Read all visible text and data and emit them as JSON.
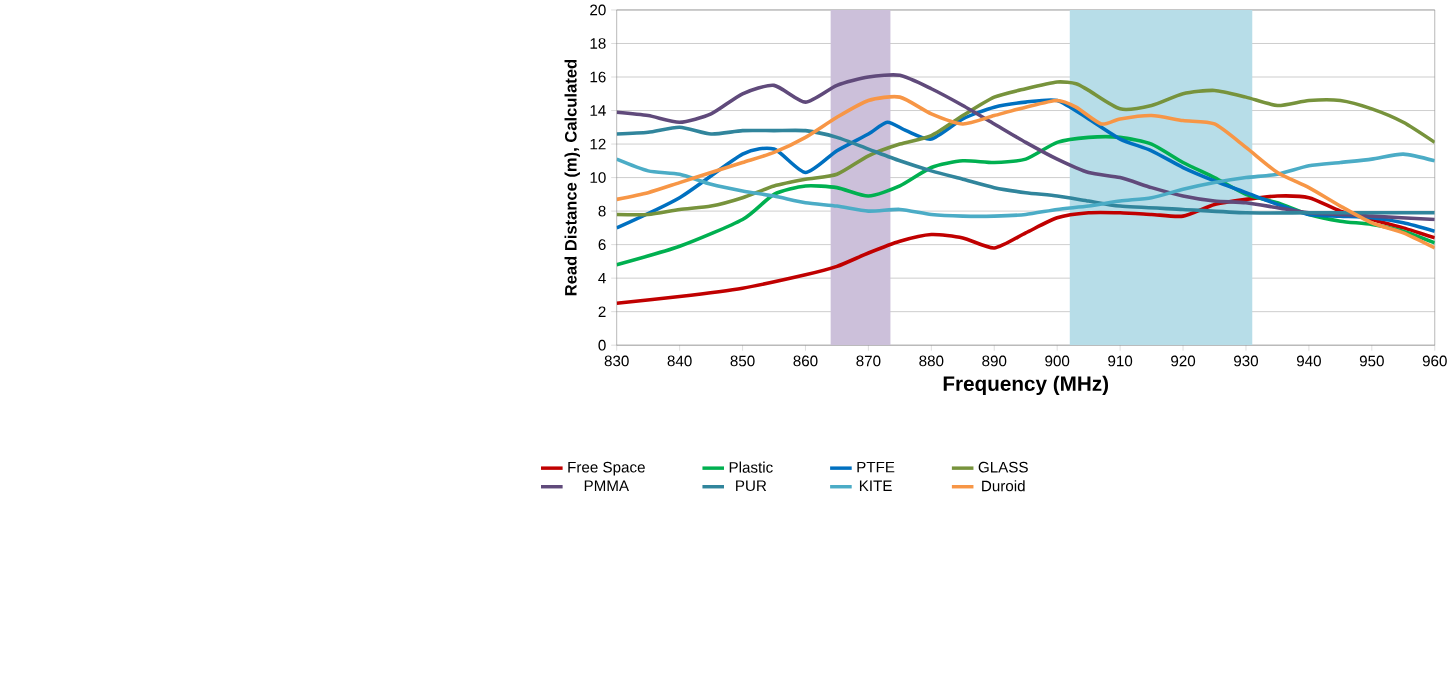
{
  "chart_data": {
    "type": "line",
    "xlabel": "Frequency (MHz)",
    "ylabel": "Read Distance (m), Calculated",
    "xlim": [
      830,
      960
    ],
    "ylim": [
      0,
      20
    ],
    "xticks": [
      830,
      840,
      850,
      860,
      870,
      880,
      890,
      900,
      910,
      920,
      930,
      940,
      950,
      960
    ],
    "yticks": [
      0,
      2,
      4,
      6,
      8,
      10,
      12,
      14,
      16,
      18,
      20
    ],
    "grid": "y",
    "legend": "bottom",
    "bands": [
      {
        "axis": "x",
        "from": 864,
        "to": 873.5,
        "color": "#ccc0da"
      },
      {
        "axis": "x",
        "from": 902,
        "to": 931,
        "color": "#b7dde8"
      }
    ],
    "series": [
      {
        "name": "Free Space",
        "color": "#c00000",
        "x": [
          830,
          840,
          850,
          860,
          865,
          870,
          875,
          880,
          885,
          890,
          895,
          900,
          905,
          910,
          915,
          920,
          925,
          930,
          935,
          940,
          945,
          950,
          955,
          960
        ],
        "values": [
          2.5,
          2.9,
          3.4,
          4.2,
          4.7,
          5.5,
          6.2,
          6.6,
          6.4,
          5.8,
          6.7,
          7.6,
          7.9,
          7.9,
          7.8,
          7.7,
          8.4,
          8.7,
          8.9,
          8.8,
          8.0,
          7.5,
          7.0,
          6.4
        ]
      },
      {
        "name": "Plastic",
        "color": "#00b050",
        "x": [
          830,
          840,
          850,
          855,
          860,
          865,
          870,
          875,
          880,
          885,
          890,
          895,
          900,
          905,
          910,
          915,
          920,
          925,
          930,
          935,
          940,
          945,
          950,
          955,
          960
        ],
        "values": [
          4.8,
          5.9,
          7.5,
          9.0,
          9.5,
          9.4,
          8.9,
          9.5,
          10.6,
          11.0,
          10.9,
          11.1,
          12.1,
          12.4,
          12.4,
          12.0,
          10.9,
          10.0,
          9.0,
          8.5,
          7.8,
          7.4,
          7.2,
          6.8,
          6.1
        ]
      },
      {
        "name": "PTFE",
        "color": "#0070c0",
        "x": [
          830,
          840,
          850,
          855,
          860,
          865,
          870,
          873,
          876,
          880,
          885,
          890,
          895,
          900,
          905,
          910,
          915,
          920,
          925,
          930,
          935,
          940,
          945,
          950,
          955,
          960
        ],
        "values": [
          7.0,
          8.8,
          11.4,
          11.7,
          10.3,
          11.6,
          12.6,
          13.3,
          12.8,
          12.3,
          13.5,
          14.2,
          14.5,
          14.6,
          13.5,
          12.3,
          11.6,
          10.6,
          9.8,
          9.1,
          8.4,
          7.8,
          7.7,
          7.6,
          7.3,
          6.8
        ]
      },
      {
        "name": "GLASS",
        "color": "#77933c",
        "x": [
          830,
          835,
          840,
          845,
          850,
          855,
          860,
          865,
          870,
          875,
          880,
          885,
          890,
          895,
          900,
          903,
          905,
          910,
          915,
          920,
          925,
          930,
          935,
          940,
          945,
          950,
          955,
          960
        ],
        "values": [
          7.8,
          7.8,
          8.1,
          8.3,
          8.8,
          9.5,
          9.9,
          10.2,
          11.3,
          12.0,
          12.5,
          13.7,
          14.8,
          15.3,
          15.7,
          15.6,
          15.2,
          14.1,
          14.3,
          15.0,
          15.2,
          14.8,
          14.3,
          14.6,
          14.6,
          14.1,
          13.3,
          12.1
        ]
      },
      {
        "name": "PMMA",
        "color": "#604a7b",
        "x": [
          830,
          835,
          840,
          845,
          850,
          855,
          860,
          865,
          870,
          875,
          880,
          885,
          890,
          895,
          900,
          905,
          910,
          915,
          920,
          925,
          930,
          935,
          940,
          950,
          960
        ],
        "values": [
          13.9,
          13.7,
          13.3,
          13.8,
          15.0,
          15.5,
          14.5,
          15.5,
          16.0,
          16.1,
          15.3,
          14.3,
          13.2,
          12.1,
          11.1,
          10.3,
          10.0,
          9.4,
          8.9,
          8.6,
          8.5,
          8.2,
          7.9,
          7.7,
          7.5
        ]
      },
      {
        "name": "PUR",
        "color": "#31859c",
        "x": [
          830,
          835,
          840,
          845,
          850,
          855,
          860,
          865,
          870,
          875,
          880,
          885,
          890,
          895,
          900,
          905,
          910,
          920,
          930,
          940,
          950,
          960
        ],
        "values": [
          12.6,
          12.7,
          13.0,
          12.6,
          12.8,
          12.8,
          12.8,
          12.4,
          11.7,
          11.0,
          10.4,
          9.9,
          9.4,
          9.1,
          8.9,
          8.6,
          8.3,
          8.1,
          7.9,
          7.9,
          7.9,
          7.9
        ]
      },
      {
        "name": "KITE",
        "color": "#4bacc6",
        "x": [
          830,
          835,
          840,
          845,
          850,
          855,
          860,
          865,
          870,
          875,
          880,
          885,
          890,
          895,
          900,
          905,
          910,
          915,
          920,
          925,
          930,
          935,
          940,
          945,
          950,
          955,
          960
        ],
        "values": [
          11.1,
          10.4,
          10.2,
          9.6,
          9.2,
          8.9,
          8.5,
          8.3,
          8.0,
          8.1,
          7.8,
          7.7,
          7.7,
          7.8,
          8.1,
          8.3,
          8.6,
          8.8,
          9.3,
          9.7,
          10.0,
          10.2,
          10.7,
          10.9,
          11.1,
          11.4,
          11.0
        ]
      },
      {
        "name": "Duroid",
        "color": "#f79646",
        "x": [
          830,
          835,
          840,
          845,
          850,
          855,
          860,
          865,
          870,
          875,
          880,
          885,
          890,
          895,
          900,
          903,
          907,
          910,
          915,
          920,
          925,
          930,
          935,
          940,
          945,
          950,
          955,
          960
        ],
        "values": [
          8.7,
          9.1,
          9.7,
          10.3,
          10.9,
          11.5,
          12.4,
          13.6,
          14.6,
          14.8,
          13.8,
          13.2,
          13.7,
          14.2,
          14.6,
          14.2,
          13.2,
          13.5,
          13.7,
          13.4,
          13.2,
          11.8,
          10.3,
          9.4,
          8.3,
          7.3,
          6.7,
          5.8
        ]
      }
    ]
  }
}
